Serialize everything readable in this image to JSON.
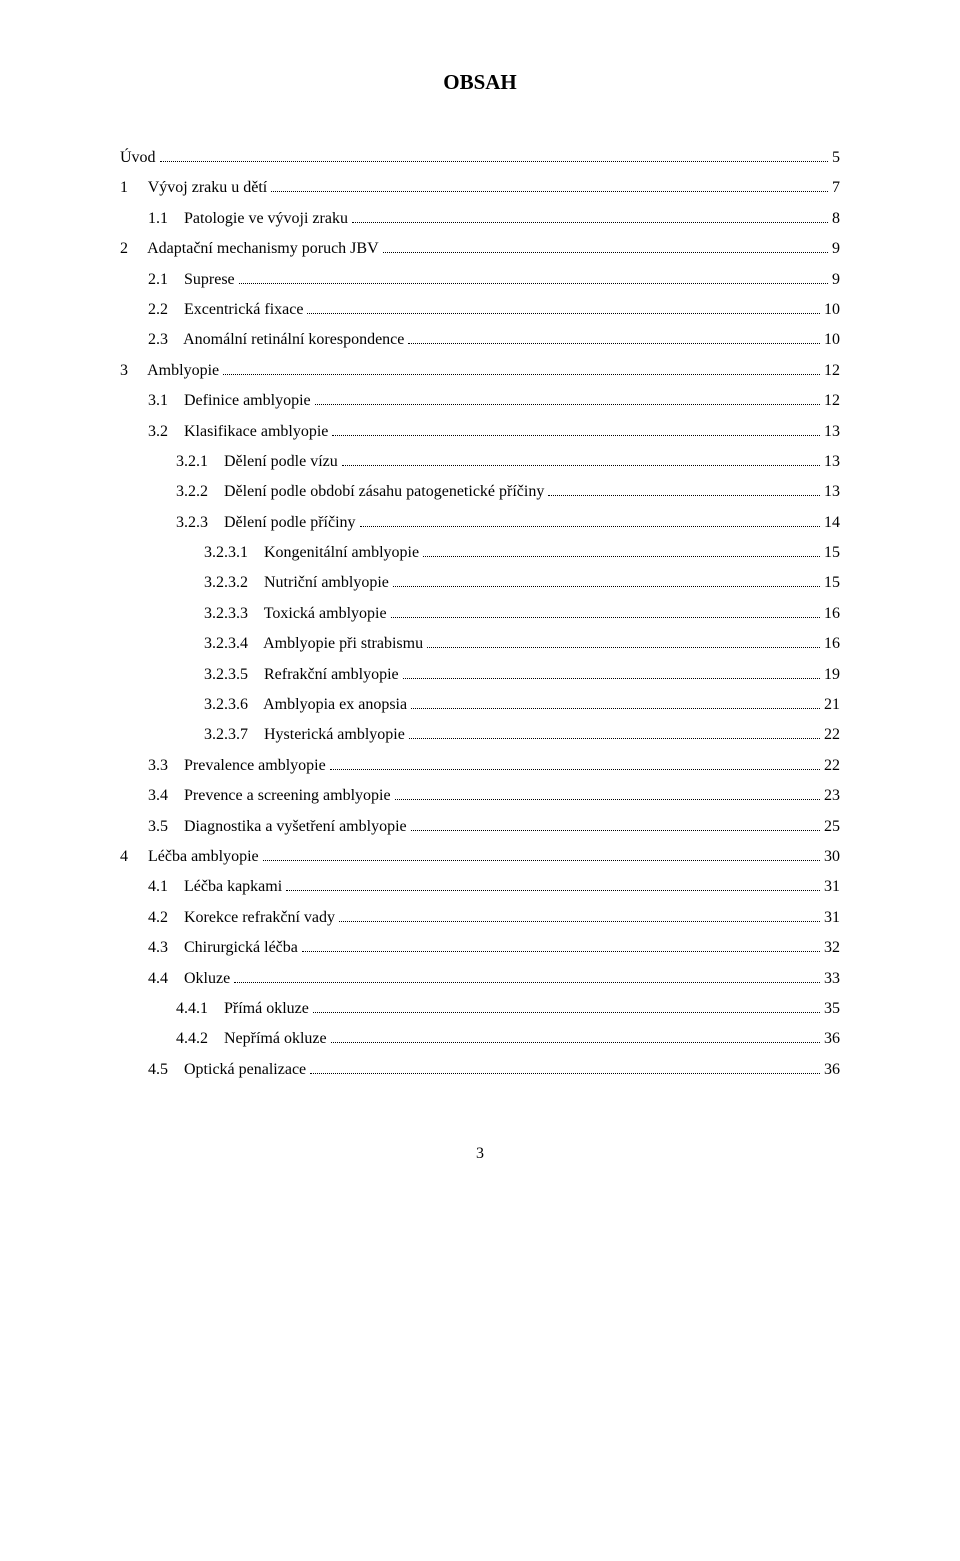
{
  "title": "OBSAH",
  "page_number": "3",
  "toc": [
    {
      "indent": 0,
      "label": "Úvod",
      "page": "5"
    },
    {
      "indent": 0,
      "label": "1     Vývoj zraku u dětí",
      "page": "7"
    },
    {
      "indent": 1,
      "label": "1.1    Patologie ve vývoji zraku",
      "page": "8"
    },
    {
      "indent": 0,
      "label": "2     Adaptační mechanismy poruch JBV",
      "page": "9"
    },
    {
      "indent": 1,
      "label": "2.1    Suprese",
      "page": "9"
    },
    {
      "indent": 1,
      "label": "2.2    Excentrická fixace",
      "page": "10"
    },
    {
      "indent": 1,
      "label": "2.3    Anomální retinální korespondence",
      "page": "10"
    },
    {
      "indent": 0,
      "label": "3     Amblyopie",
      "page": "12"
    },
    {
      "indent": 1,
      "label": "3.1    Definice amblyopie",
      "page": "12"
    },
    {
      "indent": 1,
      "label": "3.2    Klasifikace amblyopie",
      "page": "13"
    },
    {
      "indent": 2,
      "label": "3.2.1    Dělení podle vízu",
      "page": "13"
    },
    {
      "indent": 2,
      "label": "3.2.2    Dělení podle období zásahu patogenetické příčiny",
      "page": "13"
    },
    {
      "indent": 2,
      "label": "3.2.3    Dělení podle příčiny",
      "page": "14"
    },
    {
      "indent": 3,
      "label": "3.2.3.1    Kongenitální amblyopie",
      "page": "15"
    },
    {
      "indent": 3,
      "label": "3.2.3.2    Nutriční amblyopie",
      "page": "15"
    },
    {
      "indent": 3,
      "label": "3.2.3.3    Toxická amblyopie",
      "page": "16"
    },
    {
      "indent": 3,
      "label": "3.2.3.4    Amblyopie při strabismu",
      "page": "16"
    },
    {
      "indent": 3,
      "label": "3.2.3.5    Refrakční amblyopie",
      "page": "19"
    },
    {
      "indent": 3,
      "label": "3.2.3.6    Amblyopia ex anopsia",
      "page": "21"
    },
    {
      "indent": 3,
      "label": "3.2.3.7    Hysterická amblyopie",
      "page": "22"
    },
    {
      "indent": 1,
      "label": "3.3    Prevalence amblyopie",
      "page": "22"
    },
    {
      "indent": 1,
      "label": "3.4    Prevence a screening amblyopie",
      "page": "23"
    },
    {
      "indent": 1,
      "label": "3.5    Diagnostika a vyšetření amblyopie",
      "page": "25"
    },
    {
      "indent": 0,
      "label": "4     Léčba amblyopie",
      "page": "30"
    },
    {
      "indent": 1,
      "label": "4.1    Léčba kapkami",
      "page": "31"
    },
    {
      "indent": 1,
      "label": "4.2    Korekce refrakční vady",
      "page": "31"
    },
    {
      "indent": 1,
      "label": "4.3    Chirurgická léčba",
      "page": "32"
    },
    {
      "indent": 1,
      "label": "4.4    Okluze",
      "page": "33"
    },
    {
      "indent": 2,
      "label": "4.4.1    Přímá okluze",
      "page": "35"
    },
    {
      "indent": 2,
      "label": "4.4.2    Nepřímá okluze",
      "page": "36"
    },
    {
      "indent": 1,
      "label": "4.5    Optická penalizace",
      "page": "36"
    }
  ]
}
